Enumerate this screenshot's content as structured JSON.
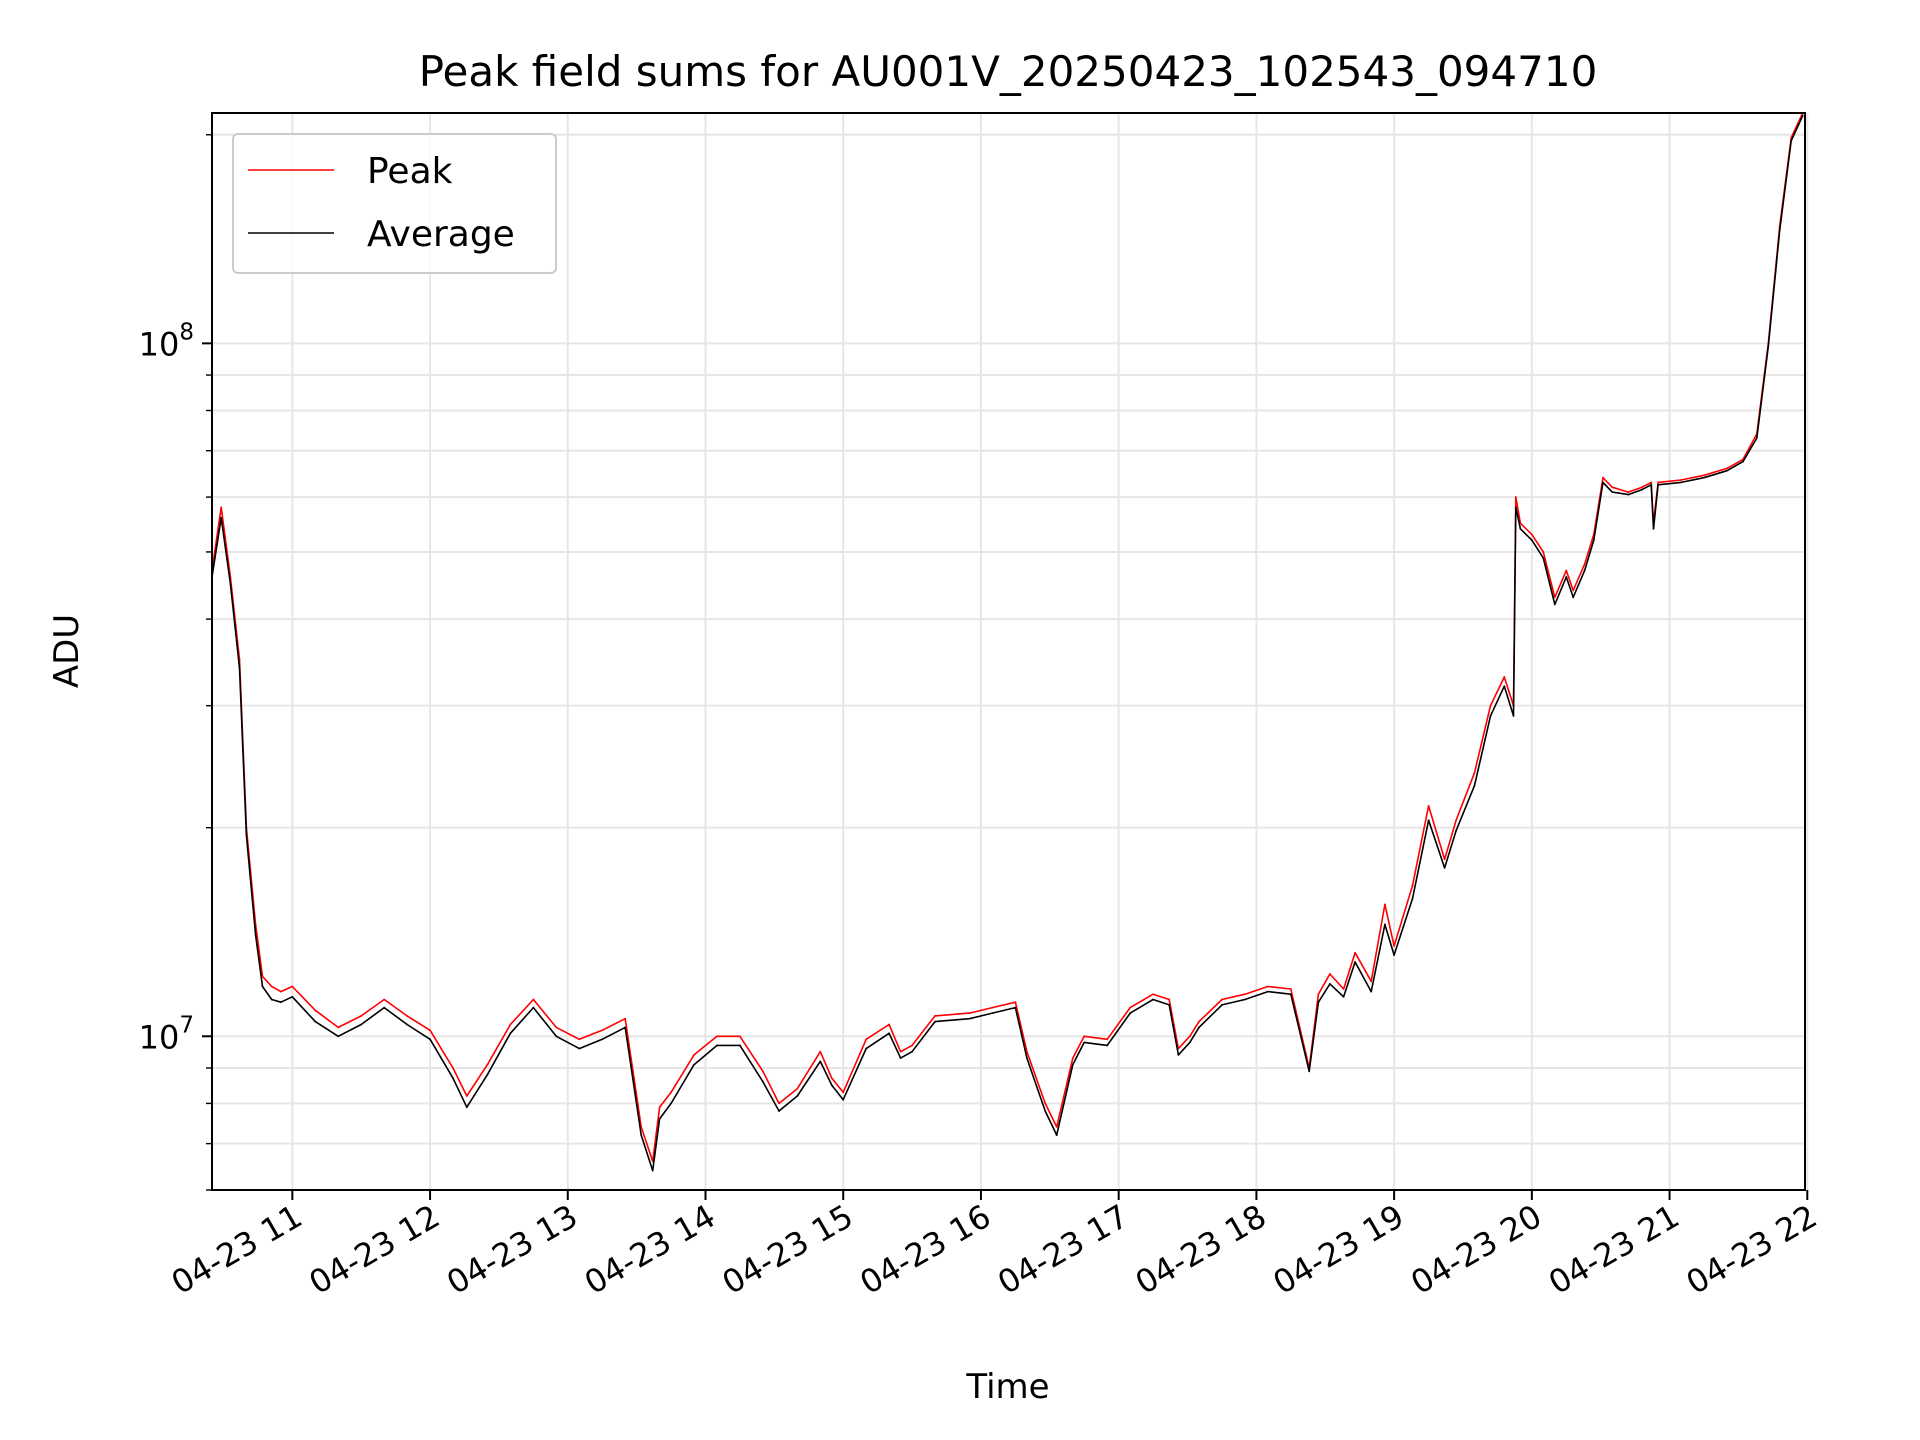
{
  "chart_data": {
    "type": "line",
    "title": "Peak field sums for AU001V_20250423_102543_094710",
    "xlabel": "Time",
    "ylabel": "ADU",
    "x_axis": "time",
    "y_scale": "log",
    "xlim": [
      "2025-04-23 10:25",
      "2025-04-23 21:59"
    ],
    "ylim": [
      6000000.0,
      215000000.0
    ],
    "grid": true,
    "legend_position": "upper-left",
    "xticks": [
      "2025-04-23 11:00",
      "2025-04-23 12:00",
      "2025-04-23 13:00",
      "2025-04-23 14:00",
      "2025-04-23 15:00",
      "2025-04-23 16:00",
      "2025-04-23 17:00",
      "2025-04-23 18:00",
      "2025-04-23 19:00",
      "2025-04-23 20:00",
      "2025-04-23 21:00",
      "2025-04-23 22:00"
    ],
    "xtick_labels": [
      "04-23 11",
      "04-23 12",
      "04-23 13",
      "04-23 14",
      "04-23 15",
      "04-23 16",
      "04-23 17",
      "04-23 18",
      "04-23 19",
      "04-23 20",
      "04-23 21",
      "04-23 22"
    ],
    "yticks": [
      10000000,
      100000000
    ],
    "ytick_labels": [
      {
        "base": "10",
        "exp": "7"
      },
      {
        "base": "10",
        "exp": "8"
      }
    ],
    "series": [
      {
        "name": "Peak",
        "color": "#ff0000",
        "x": [
          "2025-04-23 10:25",
          "2025-04-23 10:29",
          "2025-04-23 10:33",
          "2025-04-23 10:37",
          "2025-04-23 10:40",
          "2025-04-23 10:44",
          "2025-04-23 10:47",
          "2025-04-23 10:51",
          "2025-04-23 10:55",
          "2025-04-23 11:00",
          "2025-04-23 11:10",
          "2025-04-23 11:20",
          "2025-04-23 11:30",
          "2025-04-23 11:40",
          "2025-04-23 11:50",
          "2025-04-23 12:00",
          "2025-04-23 12:10",
          "2025-04-23 12:16",
          "2025-04-23 12:25",
          "2025-04-23 12:35",
          "2025-04-23 12:45",
          "2025-04-23 12:55",
          "2025-04-23 13:05",
          "2025-04-23 13:15",
          "2025-04-23 13:25",
          "2025-04-23 13:32",
          "2025-04-23 13:37",
          "2025-04-23 13:40",
          "2025-04-23 13:45",
          "2025-04-23 13:55",
          "2025-04-23 14:05",
          "2025-04-23 14:15",
          "2025-04-23 14:25",
          "2025-04-23 14:32",
          "2025-04-23 14:40",
          "2025-04-23 14:50",
          "2025-04-23 14:55",
          "2025-04-23 15:00",
          "2025-04-23 15:10",
          "2025-04-23 15:20",
          "2025-04-23 15:25",
          "2025-04-23 15:30",
          "2025-04-23 15:40",
          "2025-04-23 15:55",
          "2025-04-23 16:05",
          "2025-04-23 16:15",
          "2025-04-23 16:20",
          "2025-04-23 16:28",
          "2025-04-23 16:33",
          "2025-04-23 16:40",
          "2025-04-23 16:45",
          "2025-04-23 16:55",
          "2025-04-23 17:05",
          "2025-04-23 17:15",
          "2025-04-23 17:22",
          "2025-04-23 17:26",
          "2025-04-23 17:31",
          "2025-04-23 17:35",
          "2025-04-23 17:45",
          "2025-04-23 17:55",
          "2025-04-23 18:05",
          "2025-04-23 18:15",
          "2025-04-23 18:23",
          "2025-04-23 18:27",
          "2025-04-23 18:32",
          "2025-04-23 18:38",
          "2025-04-23 18:43",
          "2025-04-23 18:50",
          "2025-04-23 18:56",
          "2025-04-23 19:00",
          "2025-04-23 19:08",
          "2025-04-23 19:15",
          "2025-04-23 19:22",
          "2025-04-23 19:27",
          "2025-04-23 19:35",
          "2025-04-23 19:42",
          "2025-04-23 19:48",
          "2025-04-23 19:52",
          "2025-04-23 19:53",
          "2025-04-23 19:55",
          "2025-04-23 20:00",
          "2025-04-23 20:05",
          "2025-04-23 20:10",
          "2025-04-23 20:15",
          "2025-04-23 20:18",
          "2025-04-23 20:23",
          "2025-04-23 20:27",
          "2025-04-23 20:31",
          "2025-04-23 20:35",
          "2025-04-23 20:42",
          "2025-04-23 20:48",
          "2025-04-23 20:52",
          "2025-04-23 20:53",
          "2025-04-23 20:55",
          "2025-04-23 21:05",
          "2025-04-23 21:15",
          "2025-04-23 21:25",
          "2025-04-23 21:32",
          "2025-04-23 21:38",
          "2025-04-23 21:43",
          "2025-04-23 21:48",
          "2025-04-23 21:53",
          "2025-04-23 21:58"
        ],
        "y": [
          47000000,
          58000000,
          46000000,
          35000000,
          20000000,
          14500000,
          12200000,
          11800000,
          11600000,
          11800000,
          10900000,
          10300000,
          10700000,
          11300000,
          10700000,
          10200000,
          9000000,
          8200000,
          9100000,
          10400000,
          11300000,
          10300000,
          9900000,
          10200000,
          10600000,
          7400000,
          6600000,
          7900000,
          8300000,
          9400000,
          10000000,
          10000000,
          8900000,
          8000000,
          8400000,
          9500000,
          8700000,
          8300000,
          9900000,
          10400000,
          9500000,
          9700000,
          10700000,
          10800000,
          11000000,
          11200000,
          9500000,
          8000000,
          7400000,
          9300000,
          10000000,
          9900000,
          11000000,
          11500000,
          11300000,
          9600000,
          10000000,
          10500000,
          11300000,
          11500000,
          11800000,
          11700000,
          9000000,
          11500000,
          12300000,
          11700000,
          13200000,
          12000000,
          15500000,
          13500000,
          16500000,
          21500000,
          18000000,
          20500000,
          24000000,
          30000000,
          33000000,
          30000000,
          60000000,
          55000000,
          53000000,
          50000000,
          43000000,
          47000000,
          44000000,
          48000000,
          53000000,
          64000000,
          62000000,
          61000000,
          62000000,
          63000000,
          55000000,
          63000000,
          63500000,
          64500000,
          66000000,
          68000000,
          74000000,
          100000000,
          148000000,
          198000000,
          215000000
        ]
      },
      {
        "name": "Average",
        "color": "#000000",
        "x": [
          "2025-04-23 10:25",
          "2025-04-23 10:29",
          "2025-04-23 10:33",
          "2025-04-23 10:37",
          "2025-04-23 10:40",
          "2025-04-23 10:44",
          "2025-04-23 10:47",
          "2025-04-23 10:51",
          "2025-04-23 10:55",
          "2025-04-23 11:00",
          "2025-04-23 11:10",
          "2025-04-23 11:20",
          "2025-04-23 11:30",
          "2025-04-23 11:40",
          "2025-04-23 11:50",
          "2025-04-23 12:00",
          "2025-04-23 12:10",
          "2025-04-23 12:16",
          "2025-04-23 12:25",
          "2025-04-23 12:35",
          "2025-04-23 12:45",
          "2025-04-23 12:55",
          "2025-04-23 13:05",
          "2025-04-23 13:15",
          "2025-04-23 13:25",
          "2025-04-23 13:32",
          "2025-04-23 13:37",
          "2025-04-23 13:40",
          "2025-04-23 13:45",
          "2025-04-23 13:55",
          "2025-04-23 14:05",
          "2025-04-23 14:15",
          "2025-04-23 14:25",
          "2025-04-23 14:32",
          "2025-04-23 14:40",
          "2025-04-23 14:50",
          "2025-04-23 14:55",
          "2025-04-23 15:00",
          "2025-04-23 15:10",
          "2025-04-23 15:20",
          "2025-04-23 15:25",
          "2025-04-23 15:30",
          "2025-04-23 15:40",
          "2025-04-23 15:55",
          "2025-04-23 16:05",
          "2025-04-23 16:15",
          "2025-04-23 16:20",
          "2025-04-23 16:28",
          "2025-04-23 16:33",
          "2025-04-23 16:40",
          "2025-04-23 16:45",
          "2025-04-23 16:55",
          "2025-04-23 17:05",
          "2025-04-23 17:15",
          "2025-04-23 17:22",
          "2025-04-23 17:26",
          "2025-04-23 17:31",
          "2025-04-23 17:35",
          "2025-04-23 17:45",
          "2025-04-23 17:55",
          "2025-04-23 18:05",
          "2025-04-23 18:15",
          "2025-04-23 18:23",
          "2025-04-23 18:27",
          "2025-04-23 18:32",
          "2025-04-23 18:38",
          "2025-04-23 18:43",
          "2025-04-23 18:50",
          "2025-04-23 18:56",
          "2025-04-23 19:00",
          "2025-04-23 19:08",
          "2025-04-23 19:15",
          "2025-04-23 19:22",
          "2025-04-23 19:27",
          "2025-04-23 19:35",
          "2025-04-23 19:42",
          "2025-04-23 19:48",
          "2025-04-23 19:52",
          "2025-04-23 19:53",
          "2025-04-23 19:55",
          "2025-04-23 20:00",
          "2025-04-23 20:05",
          "2025-04-23 20:10",
          "2025-04-23 20:15",
          "2025-04-23 20:18",
          "2025-04-23 20:23",
          "2025-04-23 20:27",
          "2025-04-23 20:31",
          "2025-04-23 20:35",
          "2025-04-23 20:42",
          "2025-04-23 20:48",
          "2025-04-23 20:52",
          "2025-04-23 20:53",
          "2025-04-23 20:55",
          "2025-04-23 21:05",
          "2025-04-23 21:15",
          "2025-04-23 21:25",
          "2025-04-23 21:32",
          "2025-04-23 21:38",
          "2025-04-23 21:43",
          "2025-04-23 21:48",
          "2025-04-23 21:53",
          "2025-04-23 21:58"
        ],
        "y": [
          46000000,
          56000000,
          45000000,
          34000000,
          19500000,
          14000000,
          11800000,
          11300000,
          11200000,
          11400000,
          10500000,
          10000000,
          10400000,
          11000000,
          10400000,
          9900000,
          8700000,
          7900000,
          8800000,
          10100000,
          11000000,
          10000000,
          9600000,
          9900000,
          10300000,
          7200000,
          6400000,
          7600000,
          8000000,
          9100000,
          9700000,
          9700000,
          8600000,
          7800000,
          8200000,
          9200000,
          8500000,
          8100000,
          9600000,
          10100000,
          9300000,
          9500000,
          10500000,
          10600000,
          10800000,
          11000000,
          9300000,
          7800000,
          7200000,
          9100000,
          9800000,
          9700000,
          10800000,
          11300000,
          11100000,
          9400000,
          9800000,
          10300000,
          11100000,
          11300000,
          11600000,
          11500000,
          8900000,
          11200000,
          11900000,
          11400000,
          12800000,
          11600000,
          14500000,
          13100000,
          15800000,
          20500000,
          17500000,
          19800000,
          23000000,
          29000000,
          32000000,
          29000000,
          58000000,
          54000000,
          52000000,
          49000000,
          42000000,
          46000000,
          43000000,
          47000000,
          52000000,
          63000000,
          61000000,
          60500000,
          61500000,
          62500000,
          54000000,
          62500000,
          63000000,
          64000000,
          65500000,
          67500000,
          73000000,
          99000000,
          146000000,
          196000000,
          213000000
        ]
      }
    ]
  }
}
